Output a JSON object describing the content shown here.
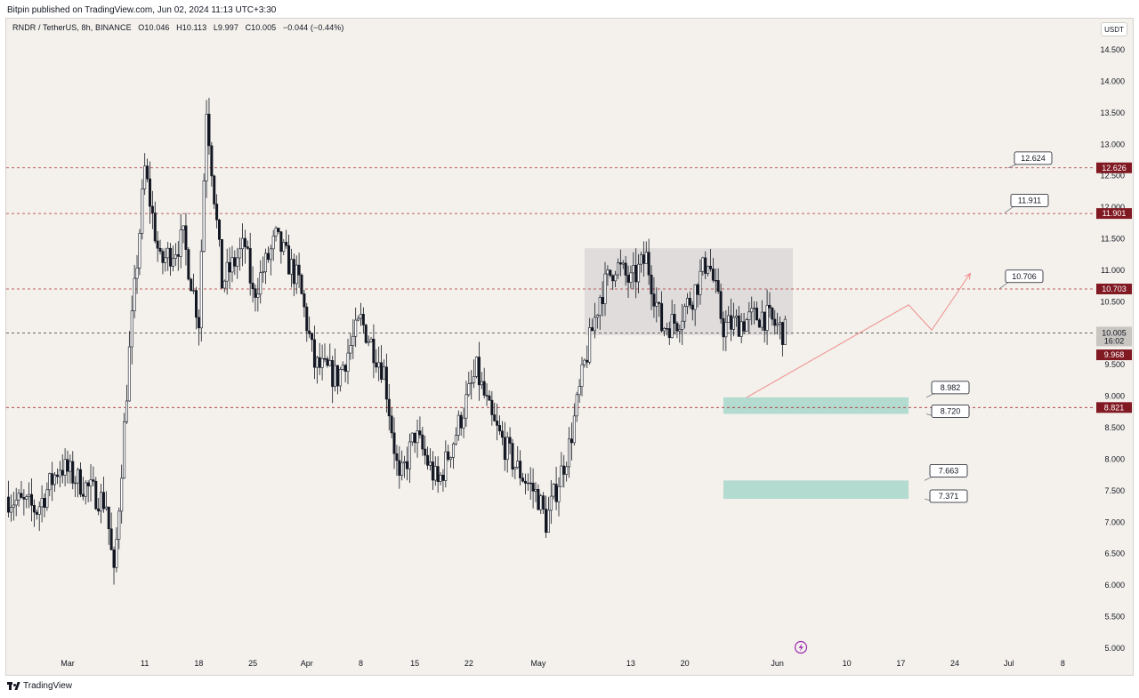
{
  "header": {
    "publish_caption": "Bitpin published on TradingView.com, Jun 02, 2024 11:13 UTC+3:30"
  },
  "legend": {
    "symbol": "RNDR / TetherUS, 8h, BINANCE",
    "open": "O10.046",
    "high": "H10.113",
    "low": "L9.997",
    "close": "C10.005",
    "change": "−0.044 (−0.44%)"
  },
  "unit_badge": "USDT",
  "footer": {
    "brand": "TradingView"
  },
  "colors": {
    "background": "#f4f1ec",
    "candle": "#131722",
    "level_line": "#a83232",
    "level_tag": "#801922",
    "range_box": "#d8d4d6",
    "support_zone": "#b3dbd0",
    "projection": "#ef8a8a",
    "lightning_icon": "#9c27b0"
  },
  "chart_data": {
    "type": "candlestick",
    "symbol": "RNDR / TetherUS",
    "interval": "8h",
    "exchange": "BINANCE",
    "ylim": [
      5.0,
      14.8
    ],
    "y_ticks": [
      "5.000",
      "5.500",
      "6.000",
      "6.500",
      "7.000",
      "7.500",
      "8.000",
      "8.500",
      "9.000",
      "9.500",
      "10.000",
      "10.500",
      "11.000",
      "11.500",
      "12.000",
      "12.500",
      "13.000",
      "13.500",
      "14.000",
      "14.500"
    ],
    "x_ticks": [
      "Mar",
      "11",
      "18",
      "25",
      "Apr",
      "8",
      "15",
      "22",
      "May",
      "13",
      "20",
      "Jun",
      "10",
      "17",
      "24",
      "Jul",
      "8"
    ],
    "x_tick_dates": [
      "2024-03-01",
      "2024-03-11",
      "2024-03-18",
      "2024-03-25",
      "2024-04-01",
      "2024-04-08",
      "2024-04-15",
      "2024-04-22",
      "2024-05-01",
      "2024-05-13",
      "2024-05-20",
      "2024-06-01",
      "2024-06-10",
      "2024-06-17",
      "2024-06-24",
      "2024-07-01",
      "2024-07-08"
    ],
    "swing_path": [
      [
        "2024-02-22",
        7.4
      ],
      [
        "2024-02-26",
        7.2
      ],
      [
        "2024-02-29",
        7.9
      ],
      [
        "2024-03-03",
        7.6
      ],
      [
        "2024-03-06",
        7.3
      ],
      [
        "2024-03-07",
        6.1
      ],
      [
        "2024-03-09",
        9.7
      ],
      [
        "2024-03-11",
        12.6
      ],
      [
        "2024-03-13",
        11.1
      ],
      [
        "2024-03-16",
        11.5
      ],
      [
        "2024-03-18",
        10.2
      ],
      [
        "2024-03-19",
        13.6
      ],
      [
        "2024-03-21",
        10.8
      ],
      [
        "2024-03-24",
        11.4
      ],
      [
        "2024-03-25",
        10.6
      ],
      [
        "2024-03-28",
        11.5
      ],
      [
        "2024-03-31",
        10.8
      ],
      [
        "2024-04-02",
        9.5
      ],
      [
        "2024-04-05",
        9.3
      ],
      [
        "2024-04-08",
        10.2
      ],
      [
        "2024-04-11",
        9.4
      ],
      [
        "2024-04-13",
        7.6
      ],
      [
        "2024-04-15",
        8.4
      ],
      [
        "2024-04-18",
        7.6
      ],
      [
        "2024-04-20",
        8.3
      ],
      [
        "2024-04-23",
        9.4
      ],
      [
        "2024-04-25",
        8.6
      ],
      [
        "2024-04-28",
        7.9
      ],
      [
        "2024-05-01",
        7.4
      ],
      [
        "2024-05-02",
        7.0
      ],
      [
        "2024-05-05",
        8.2
      ],
      [
        "2024-05-07",
        9.5
      ],
      [
        "2024-05-09",
        10.6
      ],
      [
        "2024-05-11",
        11.1
      ],
      [
        "2024-05-13",
        10.8
      ],
      [
        "2024-05-15",
        11.2
      ],
      [
        "2024-05-17",
        10.1
      ],
      [
        "2024-05-19",
        10.2
      ],
      [
        "2024-05-21",
        10.6
      ],
      [
        "2024-05-23",
        11.2
      ],
      [
        "2024-05-25",
        10.1
      ],
      [
        "2024-05-28",
        10.2
      ],
      [
        "2024-05-30",
        10.3
      ],
      [
        "2024-06-02",
        10.005
      ]
    ],
    "last_price": "10.005",
    "countdown": "16:02",
    "horizontal_levels": [
      {
        "value": 12.626,
        "tag": "12.626"
      },
      {
        "value": 11.901,
        "tag": "11.901"
      },
      {
        "value": 10.703,
        "tag": "10.703"
      },
      {
        "value": 10.005,
        "tag": ""
      },
      {
        "value": 8.821,
        "tag": "8.821"
      }
    ],
    "tag_9968": "9.968",
    "range_box": {
      "start": "2024-05-07",
      "end": "2024-06-03",
      "top": 11.35,
      "bottom": 9.97
    },
    "support_zones": [
      {
        "start": "2024-05-25",
        "end": "2024-06-18",
        "top": 8.982,
        "bottom": 8.72
      },
      {
        "start": "2024-05-25",
        "end": "2024-06-18",
        "top": 7.663,
        "bottom": 7.371
      }
    ],
    "projection_path": [
      [
        "2024-05-28",
        8.98
      ],
      [
        "2024-06-18",
        10.45
      ],
      [
        "2024-06-21",
        10.05
      ],
      [
        "2024-06-26",
        10.95
      ]
    ],
    "callouts": [
      {
        "label": "12.624",
        "value": 12.624
      },
      {
        "label": "11.911",
        "value": 11.911
      },
      {
        "label": "10.706",
        "value": 10.706
      },
      {
        "label": "8.982",
        "value": 8.982
      },
      {
        "label": "8.720",
        "value": 8.72
      },
      {
        "label": "7.663",
        "value": 7.663
      },
      {
        "label": "7.371",
        "value": 7.371
      }
    ]
  }
}
